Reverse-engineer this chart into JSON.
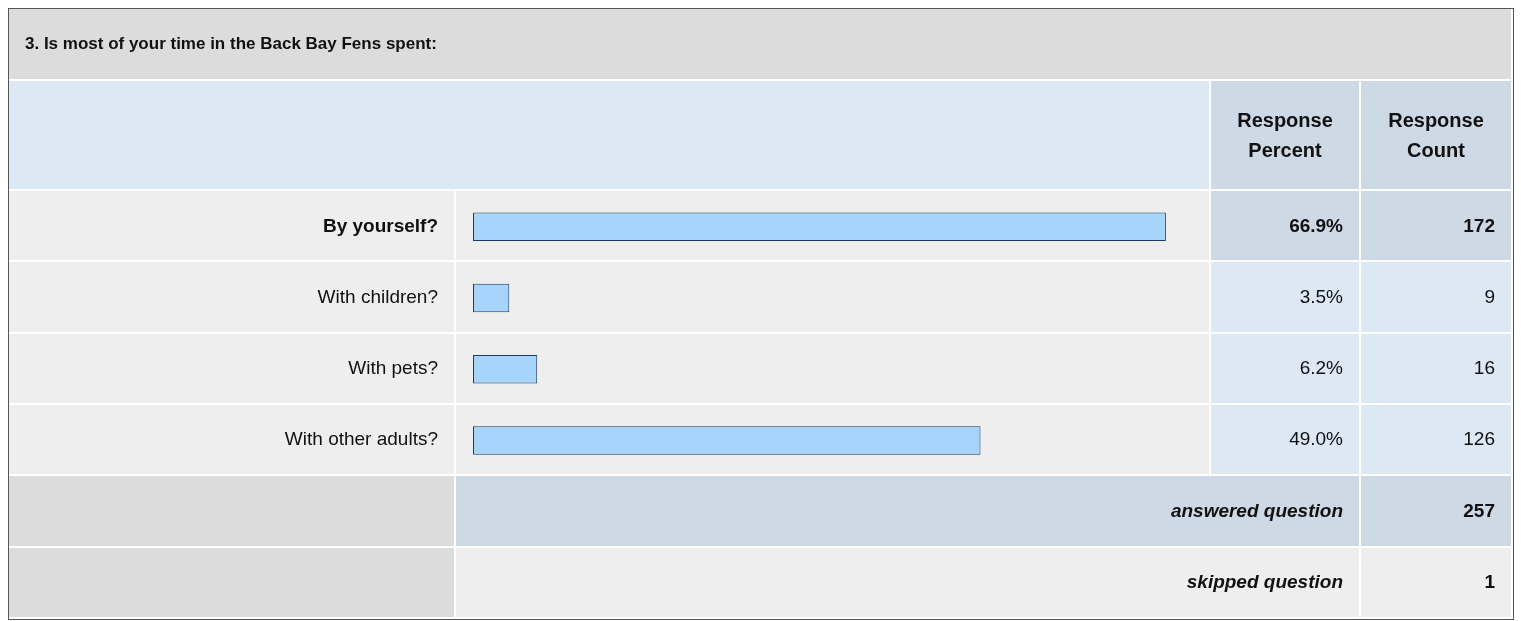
{
  "chart_data": {
    "type": "bar",
    "orientation": "horizontal",
    "title": "3. Is most of your time in the Back Bay Fens spent:",
    "categories": [
      "By yourself?",
      "With children?",
      "With pets?",
      "With other adults?"
    ],
    "values": [
      66.9,
      3.5,
      6.2,
      49.0
    ],
    "value_labels": [
      "66.9%",
      "3.5%",
      "6.2%",
      "49.0%"
    ],
    "color": "#a6d4fa",
    "tick_labels": false,
    "annotations": [
      "Response Percent",
      "Response Count",
      "172",
      "9",
      "16",
      "126",
      "answered question",
      "257",
      "skipped question",
      "1"
    ]
  }
}
